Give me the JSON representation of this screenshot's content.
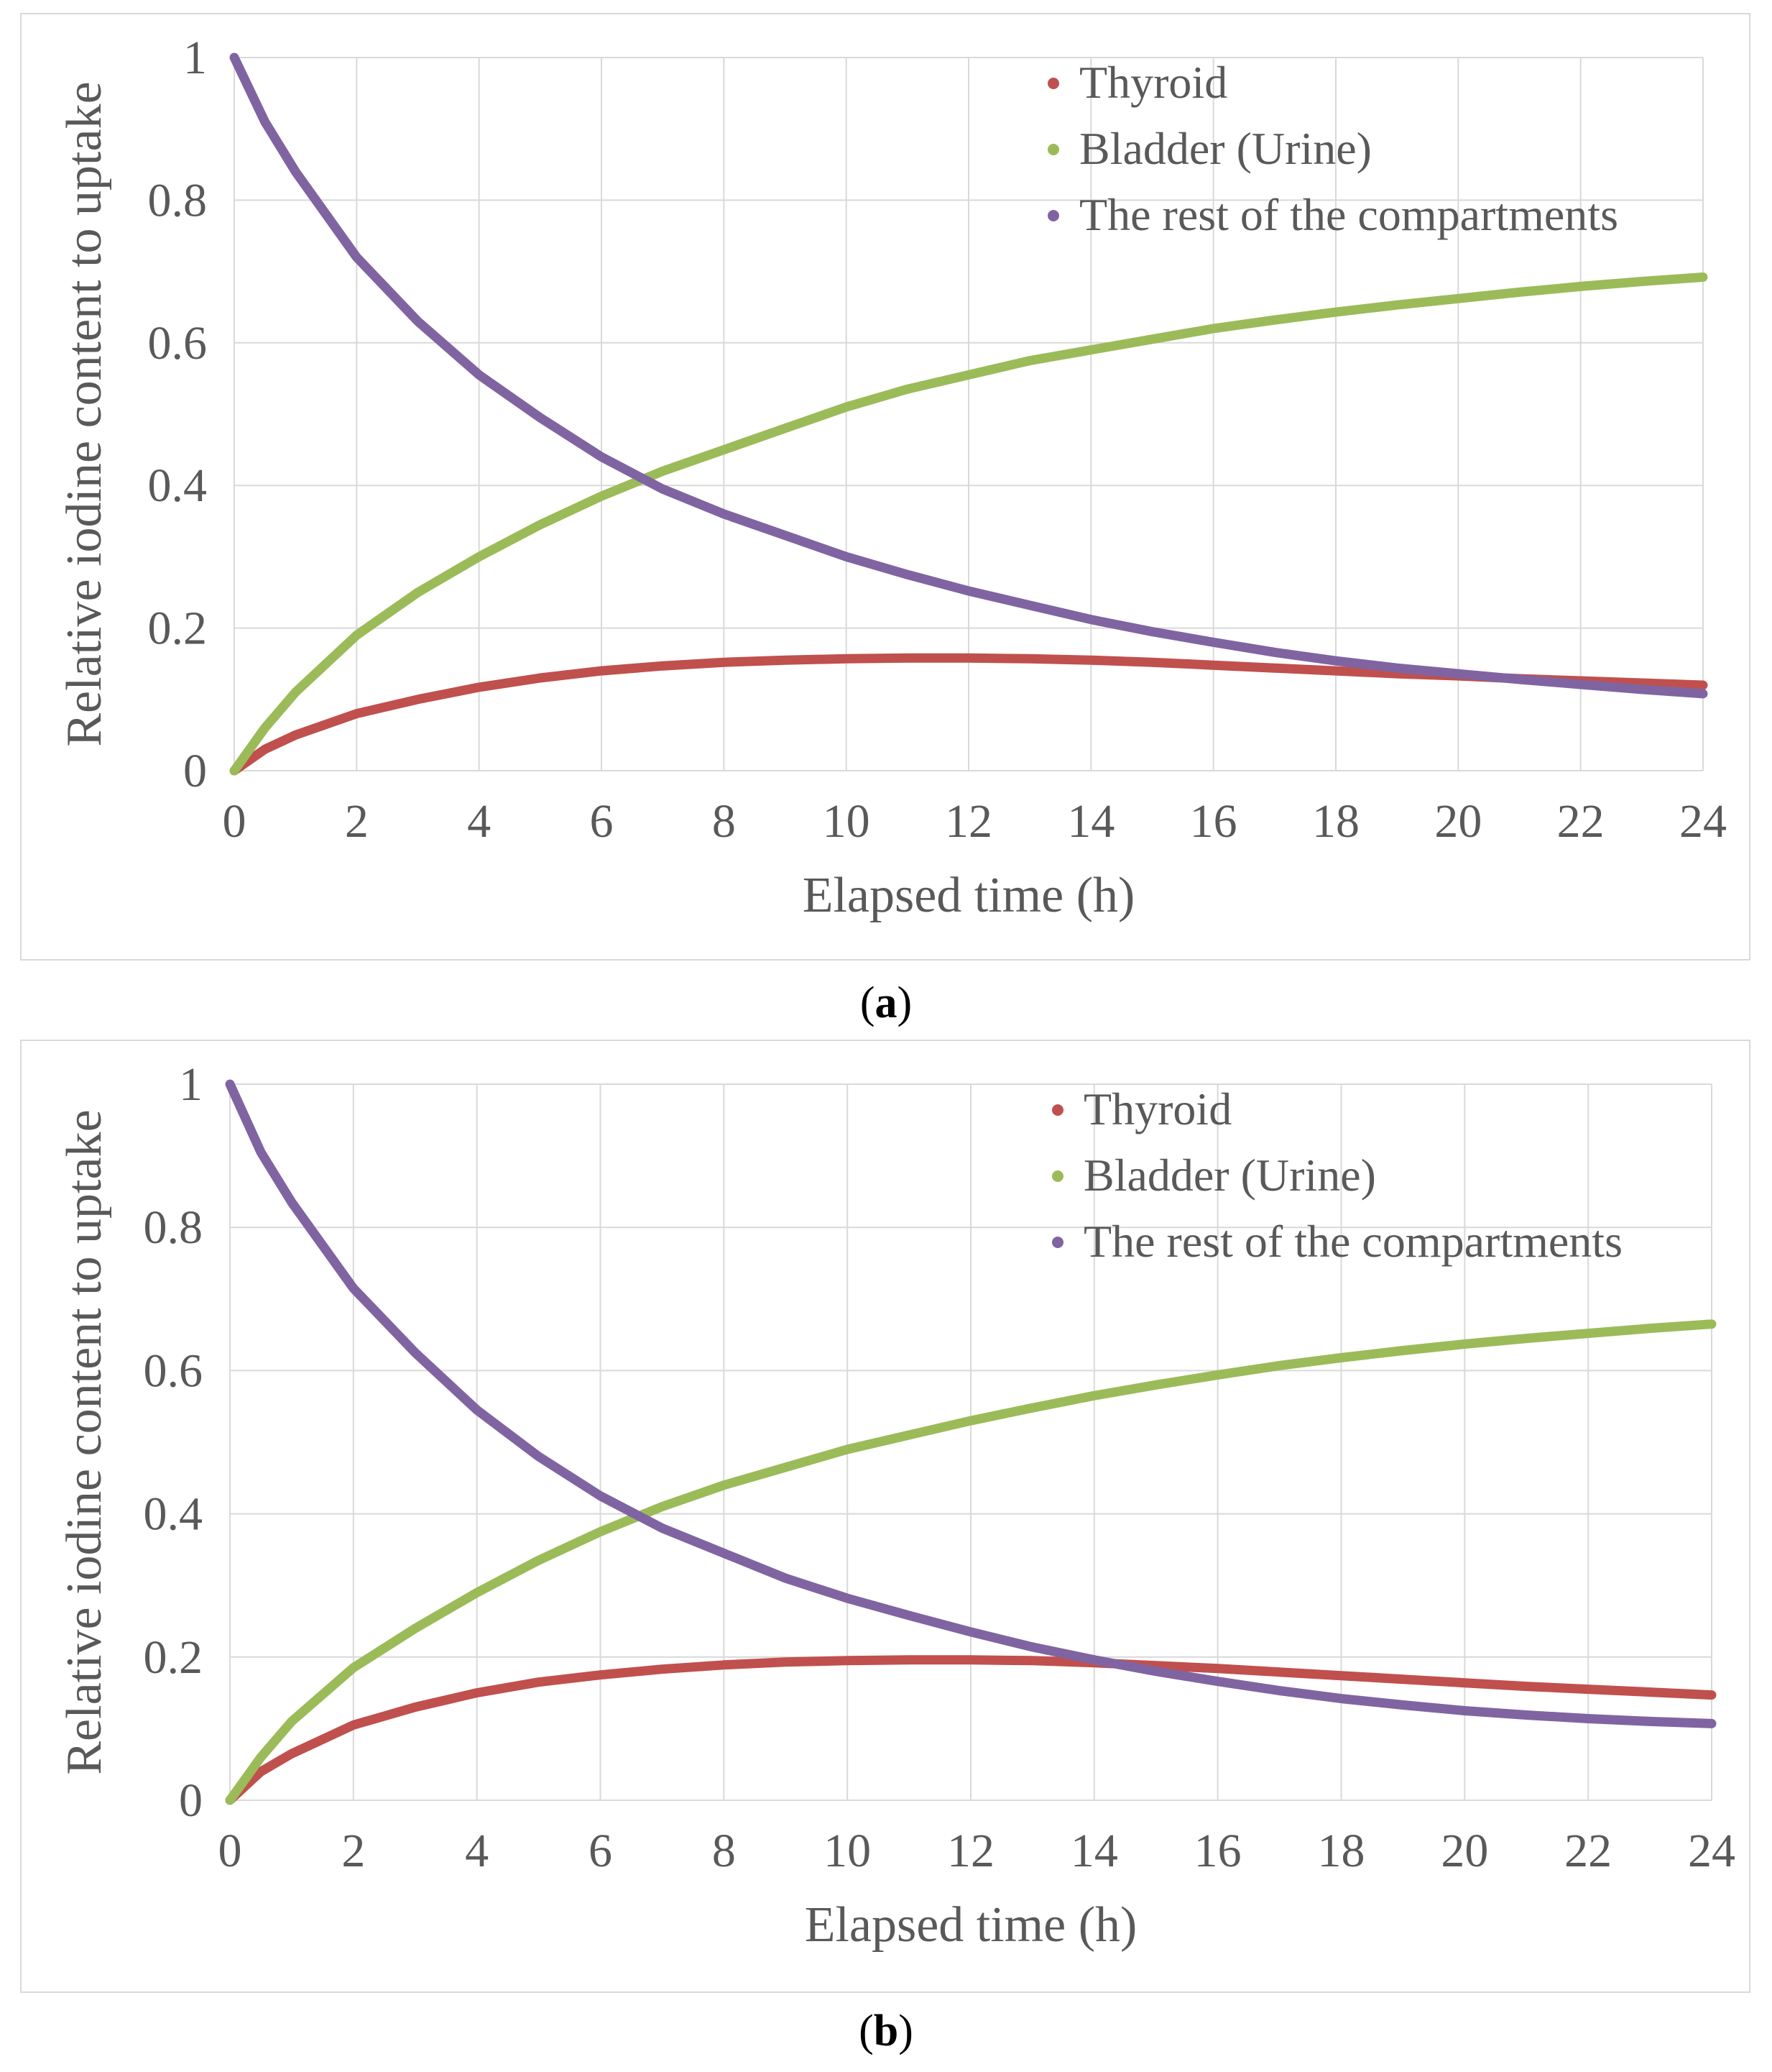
{
  "chart_data": [
    {
      "type": "line",
      "panel_label": "a",
      "xlabel": "Elapsed  time (h)",
      "ylabel": "Relative iodine content to uptake",
      "xlim": [
        0,
        24
      ],
      "ylim": [
        0,
        1
      ],
      "x_ticks": [
        "0",
        "2",
        "4",
        "6",
        "8",
        "10",
        "12",
        "14",
        "16",
        "18",
        "20",
        "22",
        "24"
      ],
      "y_ticks": [
        "0",
        "0.2",
        "0.4",
        "0.6",
        "0.8",
        "1"
      ],
      "legend_position": "top-right",
      "series": [
        {
          "name": "Thyroid",
          "color": "#c0504d",
          "x": [
            0,
            0.5,
            1,
            2,
            3,
            4,
            5,
            6,
            7,
            8,
            9,
            10,
            11,
            12,
            13,
            14,
            15,
            16,
            17,
            18,
            19,
            20,
            21,
            22,
            23,
            24
          ],
          "y": [
            0,
            0.03,
            0.05,
            0.08,
            0.1,
            0.117,
            0.13,
            0.14,
            0.147,
            0.152,
            0.155,
            0.157,
            0.158,
            0.158,
            0.157,
            0.155,
            0.152,
            0.148,
            0.144,
            0.14,
            0.136,
            0.133,
            0.129,
            0.126,
            0.123,
            0.12
          ]
        },
        {
          "name": "Bladder (Urine)",
          "color": "#9bbb59",
          "x": [
            0,
            0.5,
            1,
            2,
            3,
            4,
            5,
            6,
            7,
            8,
            9,
            10,
            11,
            12,
            13,
            14,
            15,
            16,
            17,
            18,
            19,
            20,
            21,
            22,
            23,
            24
          ],
          "y": [
            0,
            0.06,
            0.11,
            0.19,
            0.25,
            0.3,
            0.345,
            0.385,
            0.42,
            0.45,
            0.48,
            0.51,
            0.535,
            0.555,
            0.575,
            0.59,
            0.605,
            0.62,
            0.632,
            0.643,
            0.653,
            0.662,
            0.671,
            0.679,
            0.686,
            0.692
          ]
        },
        {
          "name": "The rest of the compartments",
          "color": "#8064a2",
          "x": [
            0,
            0.5,
            1,
            2,
            3,
            4,
            5,
            6,
            7,
            8,
            9,
            10,
            11,
            12,
            13,
            14,
            15,
            16,
            17,
            18,
            19,
            20,
            21,
            22,
            23,
            24
          ],
          "y": [
            1.0,
            0.91,
            0.84,
            0.72,
            0.63,
            0.555,
            0.495,
            0.44,
            0.395,
            0.36,
            0.33,
            0.3,
            0.275,
            0.252,
            0.232,
            0.212,
            0.195,
            0.18,
            0.166,
            0.154,
            0.144,
            0.136,
            0.128,
            0.121,
            0.114,
            0.108
          ]
        }
      ]
    },
    {
      "type": "line",
      "panel_label": "b",
      "xlabel": "Elapsed  time (h)",
      "ylabel": "Relative iodine content to uptake",
      "xlim": [
        0,
        24
      ],
      "ylim": [
        0,
        1
      ],
      "x_ticks": [
        "0",
        "2",
        "4",
        "6",
        "8",
        "10",
        "12",
        "14",
        "16",
        "18",
        "20",
        "22",
        "24"
      ],
      "y_ticks": [
        "0",
        "0.2",
        "0.4",
        "0.6",
        "0.8",
        "1"
      ],
      "legend_position": "top-right",
      "series": [
        {
          "name": "Thyroid",
          "color": "#c0504d",
          "x": [
            0,
            0.5,
            1,
            2,
            3,
            4,
            5,
            6,
            7,
            8,
            9,
            10,
            11,
            12,
            13,
            14,
            15,
            16,
            17,
            18,
            19,
            20,
            21,
            22,
            23,
            24
          ],
          "y": [
            0,
            0.04,
            0.065,
            0.105,
            0.13,
            0.15,
            0.165,
            0.175,
            0.183,
            0.189,
            0.193,
            0.195,
            0.196,
            0.196,
            0.195,
            0.192,
            0.188,
            0.184,
            0.179,
            0.174,
            0.169,
            0.164,
            0.159,
            0.155,
            0.151,
            0.147
          ]
        },
        {
          "name": "Bladder (Urine)",
          "color": "#9bbb59",
          "x": [
            0,
            0.5,
            1,
            2,
            3,
            4,
            5,
            6,
            7,
            8,
            9,
            10,
            11,
            12,
            13,
            14,
            15,
            16,
            17,
            18,
            19,
            20,
            21,
            22,
            23,
            24
          ],
          "y": [
            0,
            0.06,
            0.11,
            0.185,
            0.24,
            0.29,
            0.335,
            0.375,
            0.41,
            0.44,
            0.465,
            0.49,
            0.51,
            0.53,
            0.548,
            0.565,
            0.58,
            0.594,
            0.607,
            0.618,
            0.628,
            0.637,
            0.645,
            0.652,
            0.659,
            0.665
          ]
        },
        {
          "name": "The rest of the compartments",
          "color": "#8064a2",
          "x": [
            0,
            0.5,
            1,
            2,
            3,
            4,
            5,
            6,
            7,
            8,
            9,
            10,
            11,
            12,
            13,
            14,
            15,
            16,
            17,
            18,
            19,
            20,
            21,
            22,
            23,
            24
          ],
          "y": [
            1.0,
            0.905,
            0.835,
            0.715,
            0.625,
            0.545,
            0.48,
            0.425,
            0.38,
            0.345,
            0.31,
            0.282,
            0.258,
            0.235,
            0.214,
            0.196,
            0.18,
            0.166,
            0.153,
            0.142,
            0.133,
            0.125,
            0.119,
            0.114,
            0.11,
            0.107
          ]
        }
      ]
    }
  ]
}
